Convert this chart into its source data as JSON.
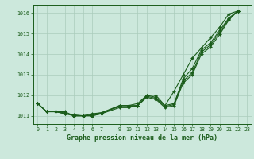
{
  "background_color": "#cce8dc",
  "plot_bg_color": "#cce8dc",
  "grid_color": "#aaccbb",
  "line_color": "#1a5c1a",
  "title": "Graphe pression niveau de la mer (hPa)",
  "ylim": [
    1010.6,
    1016.4
  ],
  "xlim": [
    -0.5,
    23.5
  ],
  "yticks": [
    1011,
    1012,
    1013,
    1014,
    1015,
    1016
  ],
  "xticks": [
    0,
    1,
    2,
    3,
    4,
    5,
    6,
    7,
    9,
    10,
    11,
    12,
    13,
    14,
    15,
    16,
    17,
    18,
    19,
    20,
    21,
    22,
    23
  ],
  "series1": [
    1011.6,
    1011.2,
    1011.2,
    1011.2,
    1011.0,
    1011.0,
    1011.0,
    1011.1,
    1011.5,
    1011.5,
    1011.5,
    1012.0,
    1011.9,
    1011.5,
    1011.6,
    1012.8,
    1013.3,
    1014.2,
    1014.55,
    1015.15,
    1015.75,
    1016.1
  ],
  "series2": [
    1011.6,
    1011.2,
    1011.2,
    1011.15,
    1011.0,
    1011.0,
    1011.05,
    1011.15,
    1011.45,
    1011.45,
    1011.5,
    1011.95,
    1011.85,
    1011.45,
    1011.55,
    1012.7,
    1013.1,
    1014.1,
    1014.45,
    1015.05,
    1015.7,
    1016.1
  ],
  "series3": [
    1011.6,
    1011.2,
    1011.2,
    1011.1,
    1011.0,
    1011.0,
    1011.0,
    1011.1,
    1011.4,
    1011.4,
    1011.5,
    1011.9,
    1011.8,
    1011.4,
    1011.5,
    1012.6,
    1013.0,
    1014.0,
    1014.35,
    1014.95,
    1015.65,
    1016.1
  ],
  "series4": [
    1011.6,
    1011.2,
    1011.2,
    1011.1,
    1011.05,
    1011.0,
    1011.1,
    1011.15,
    1011.5,
    1011.5,
    1011.6,
    1012.0,
    1012.0,
    1011.5,
    1012.2,
    1013.0,
    1013.8,
    1014.3,
    1014.8,
    1015.3,
    1015.95,
    1016.1
  ],
  "hours1": [
    0,
    1,
    2,
    3,
    4,
    5,
    6,
    7,
    9,
    10,
    11,
    12,
    13,
    14,
    15,
    16,
    17,
    18,
    19,
    20,
    21,
    22
  ],
  "hours2": [
    0,
    1,
    2,
    3,
    4,
    5,
    6,
    7,
    9,
    10,
    11,
    12,
    13,
    14,
    15,
    16,
    17,
    18,
    19,
    20,
    21,
    22
  ],
  "hours3": [
    0,
    1,
    2,
    3,
    4,
    5,
    6,
    7,
    9,
    10,
    11,
    12,
    13,
    14,
    15,
    16,
    17,
    18,
    19,
    20,
    21,
    22
  ],
  "hours4": [
    0,
    1,
    2,
    3,
    4,
    5,
    6,
    7,
    9,
    10,
    11,
    12,
    13,
    14,
    15,
    16,
    17,
    18,
    19,
    20,
    21,
    22
  ]
}
